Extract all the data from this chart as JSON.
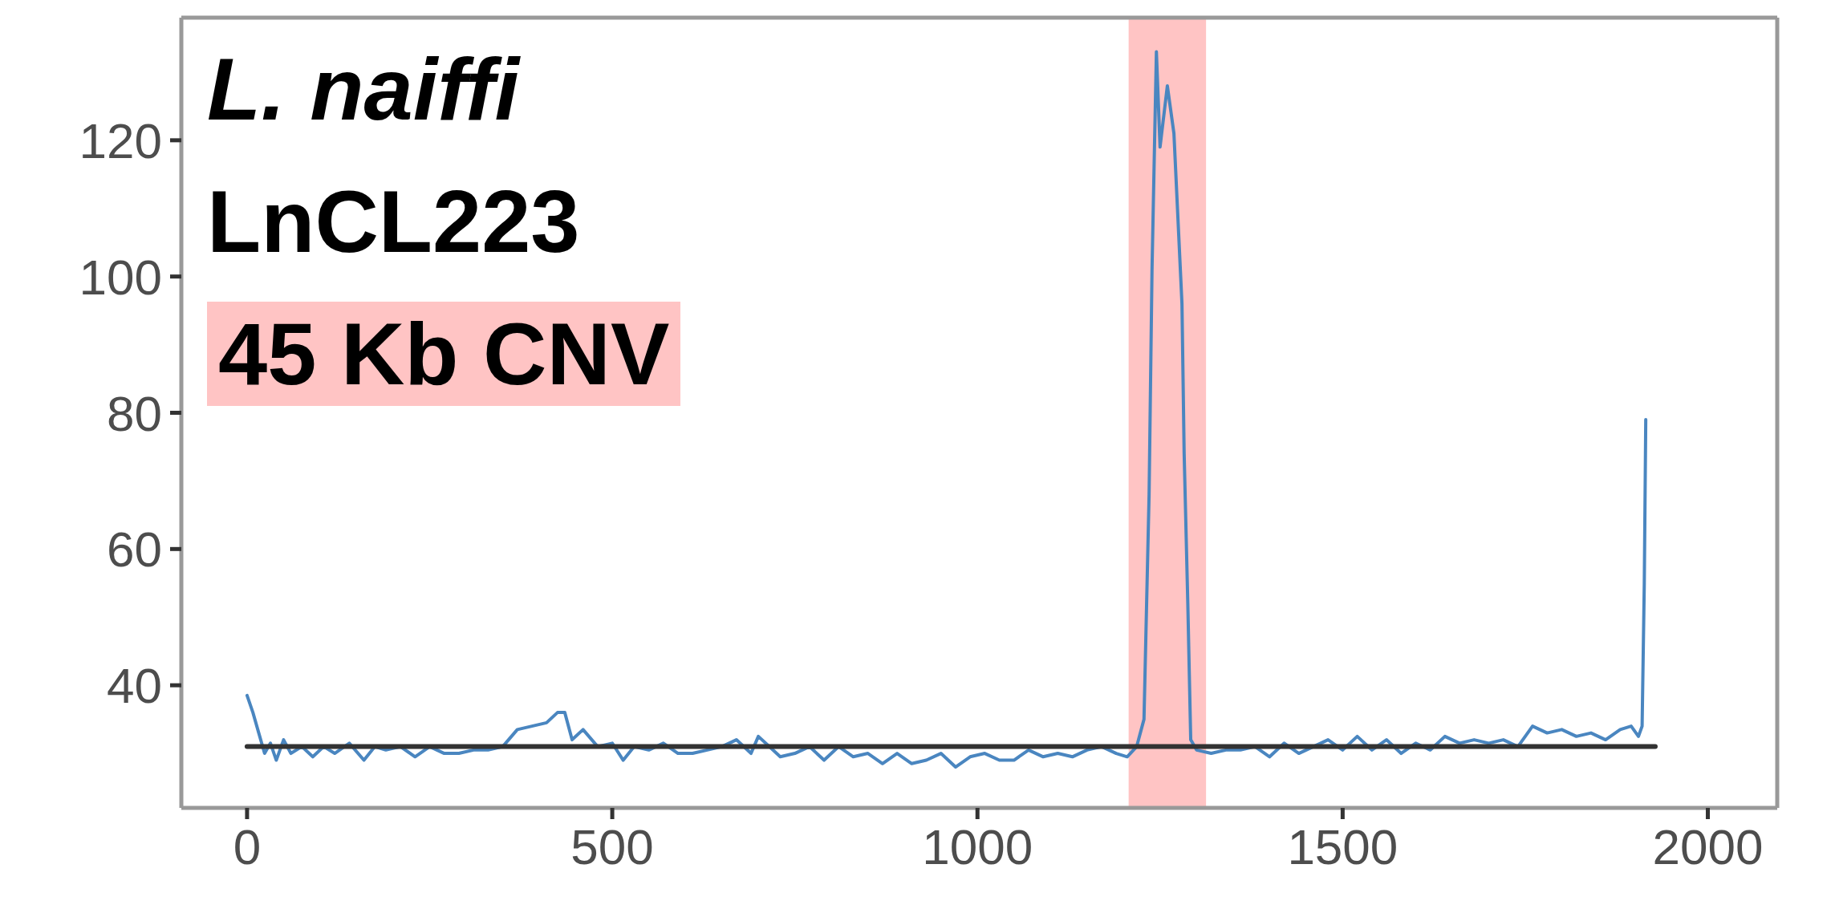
{
  "chart_data": {
    "type": "line",
    "annotations": [
      "L. naiffi",
      "LnCL223",
      "45 Kb CNV"
    ],
    "xlim": [
      -90,
      2095
    ],
    "xticks": [
      0,
      500,
      1000,
      1500,
      2000
    ],
    "ylim": [
      22,
      138
    ],
    "yticks": [
      40,
      60,
      80,
      100,
      120
    ],
    "grid": false,
    "legend": false,
    "marker": "none",
    "line_style": "solid",
    "bands": [
      {
        "axis": "x",
        "from": 1207,
        "to": 1313,
        "color": "#ffc4c4"
      }
    ],
    "series": [
      {
        "color": "#4a86c0",
        "x": [
          0,
          8,
          16,
          24,
          32,
          40,
          50,
          60,
          75,
          90,
          105,
          120,
          140,
          160,
          175,
          190,
          210,
          230,
          250,
          270,
          290,
          310,
          330,
          350,
          370,
          390,
          410,
          425,
          435,
          445,
          460,
          480,
          500,
          515,
          530,
          550,
          570,
          590,
          610,
          630,
          650,
          670,
          690,
          700,
          715,
          730,
          750,
          770,
          790,
          810,
          830,
          850,
          870,
          890,
          910,
          930,
          950,
          970,
          990,
          1010,
          1030,
          1050,
          1070,
          1090,
          1110,
          1130,
          1150,
          1170,
          1190,
          1205,
          1218,
          1228,
          1235,
          1239,
          1245,
          1250,
          1260,
          1269,
          1280,
          1283,
          1288,
          1292,
          1300,
          1320,
          1340,
          1360,
          1380,
          1400,
          1420,
          1440,
          1460,
          1480,
          1500,
          1520,
          1540,
          1560,
          1580,
          1600,
          1620,
          1640,
          1660,
          1680,
          1700,
          1720,
          1740,
          1760,
          1780,
          1800,
          1820,
          1840,
          1860,
          1880,
          1895,
          1905,
          1910,
          1913,
          1915
        ],
        "values": [
          38.5,
          36,
          33,
          30,
          31.5,
          29,
          32,
          30,
          31,
          29.5,
          31,
          30,
          31.5,
          29,
          31,
          30.5,
          31,
          29.5,
          31,
          30,
          30,
          30.5,
          30.5,
          31,
          33.5,
          34,
          34.5,
          36,
          36,
          32,
          33.5,
          31,
          31.5,
          29,
          31,
          30.5,
          31.5,
          30,
          30,
          30.5,
          31,
          32,
          30,
          32.5,
          31,
          29.5,
          30,
          31,
          29,
          31,
          29.5,
          30,
          28.5,
          30,
          28.5,
          29,
          30,
          28,
          29.5,
          30,
          29,
          29,
          30.5,
          29.5,
          30,
          29.5,
          30.5,
          31,
          30,
          29.5,
          31,
          35,
          68,
          101,
          133,
          119,
          128,
          121,
          96,
          74,
          52,
          32,
          30.5,
          30,
          30.5,
          30.5,
          31,
          29.5,
          31.5,
          30,
          31,
          32,
          30.5,
          32.5,
          30.5,
          32,
          30,
          31.5,
          30.5,
          32.5,
          31.5,
          32,
          31.5,
          32,
          31,
          34,
          33,
          33.5,
          32.5,
          33,
          32,
          33.5,
          34,
          32.5,
          34,
          55,
          79
        ]
      },
      {
        "color": "#333333",
        "x": [
          0,
          1928
        ],
        "values": [
          31,
          31
        ]
      }
    ]
  }
}
